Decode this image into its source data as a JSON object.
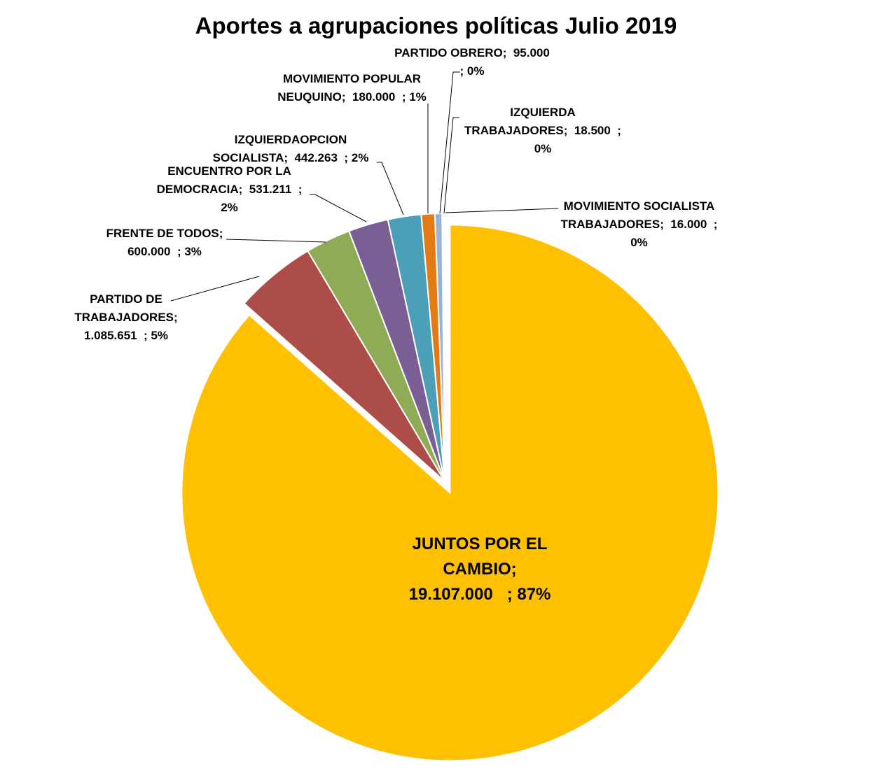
{
  "chart_data": {
    "type": "pie",
    "title": "Aportes a agrupaciones políticas Julio 2019",
    "start_angle_deg": 0,
    "direction": "clockwise",
    "exploded": [
      "JUNTOS POR EL CAMBIO"
    ],
    "slices": [
      {
        "name": "JUNTOS POR EL CAMBIO",
        "value": 19107000,
        "value_label": "19.107.000",
        "percent_label": "87%",
        "color": "#FFC000"
      },
      {
        "name": "PARTIDO DE TRABAJADORES",
        "value": 1085651,
        "value_label": "1.085.651",
        "percent_label": "5%",
        "color": "#AD4D49"
      },
      {
        "name": "FRENTE DE TODOS",
        "value": 600000,
        "value_label": "600.000",
        "percent_label": "3%",
        "color": "#8FAB55"
      },
      {
        "name": "ENCUENTRO POR LA DEMOCRACIA",
        "value": 531211,
        "value_label": "531.211",
        "percent_label": "2%",
        "color": "#7A5F95"
      },
      {
        "name": "IZQUIERDAOPCION SOCIALISTA",
        "value": 442263,
        "value_label": "442.263",
        "percent_label": "2%",
        "color": "#4B9FB7"
      },
      {
        "name": "MOVIMIENTO POPULAR NEUQUINO",
        "value": 180000,
        "value_label": "180.000",
        "percent_label": "1%",
        "color": "#E47B12"
      },
      {
        "name": "PARTIDO OBRERO",
        "value": 95000,
        "value_label": "95.000",
        "percent_label": "0%",
        "color": "#95B3D7"
      },
      {
        "name": "IZQUIERDA TRABAJADORES",
        "value": 18500,
        "value_label": "18.500",
        "percent_label": "0%",
        "color": "#C4BD97"
      },
      {
        "name": "MOVIMIENTO SOCIALISTA TRABAJADORES",
        "value": 16000,
        "value_label": "16.000",
        "percent_label": "0%",
        "color": "#E6B9B8"
      }
    ],
    "data_labels": [
      "JUNTOS POR EL\nCAMBIO;\n19.107.000   ; 87%",
      "PARTIDO DE\nTRABAJADORES;\n1.085.651  ; 5%",
      "FRENTE DE TODOS;\n600.000  ; 3%",
      "ENCUENTRO POR LA\nDEMOCRACIA;  531.211  ;\n2%",
      "IZQUIERDAOPCION\nSOCIALISTA;  442.263  ; 2%",
      "MOVIMIENTO POPULAR\nNEUQUINO;  180.000  ; 1%",
      "PARTIDO OBRERO;  95.000\n; 0%",
      "IZQUIERDA\nTRABAJADORES;  18.500  ;\n0%",
      "MOVIMIENTO SOCIALISTA\nTRABAJADORES;  16.000  ;\n0%"
    ],
    "legend": "none"
  }
}
